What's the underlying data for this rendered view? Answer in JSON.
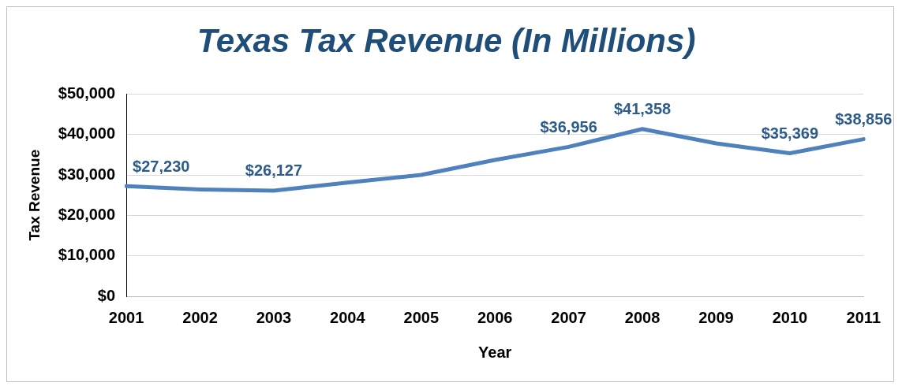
{
  "chart_data": {
    "type": "line",
    "title": "Texas Tax Revenue (In Millions)",
    "xlabel": "Year",
    "ylabel": "Tax Revenue",
    "categories": [
      "2001",
      "2002",
      "2003",
      "2004",
      "2005",
      "2006",
      "2007",
      "2008",
      "2009",
      "2010",
      "2011"
    ],
    "series": [
      {
        "color": "#4f81bd",
        "values": [
          27230,
          26400,
          26127,
          28100,
          30000,
          33700,
          36956,
          41358,
          37800,
          35369,
          38856
        ],
        "value_labels": [
          "$27,230",
          null,
          "$26,127",
          null,
          null,
          null,
          "$36,956",
          "$41,358",
          null,
          "$35,369",
          "$38,856"
        ]
      }
    ],
    "ylim": [
      0,
      50000
    ],
    "yticks": [
      {
        "value": 0,
        "label": "$0"
      },
      {
        "value": 10000,
        "label": "$10,000"
      },
      {
        "value": 20000,
        "label": "$20,000"
      },
      {
        "value": 30000,
        "label": "$30,000"
      },
      {
        "value": 40000,
        "label": "$40,000"
      },
      {
        "value": 50000,
        "label": "$50,000"
      }
    ],
    "grid": "y",
    "legend": false,
    "marker": "none",
    "line_style": "solid"
  }
}
